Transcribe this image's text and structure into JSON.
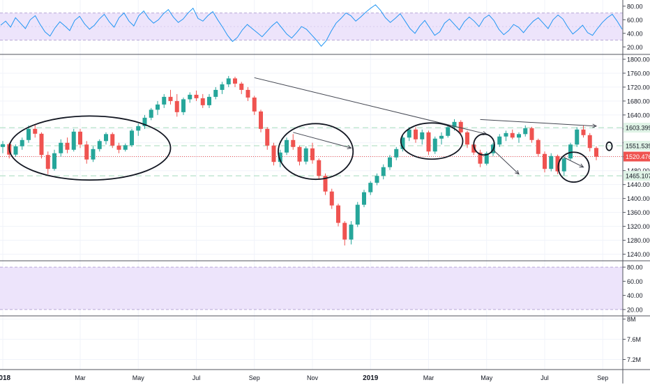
{
  "theme": {
    "up_color": "#26a69a",
    "down_color": "#ef5350",
    "rsi_line_color": "#2196f3",
    "band_fill": "#ede4fb",
    "band_line_color": "#b7a7d6",
    "level_line_color": "#b6e2c8",
    "price_line_color": "#ef5350",
    "drawing_color": "#131722",
    "grid_color": "#f0f3fa",
    "axis_text_color": "#131722",
    "pane_border_color": "#50535e"
  },
  "chart_data": [
    {
      "type": "line",
      "pane": "rsi-top",
      "ylim": [
        10,
        86
      ],
      "yticks": [
        "80.00",
        "60.00",
        "40.00",
        "20.00"
      ],
      "tick_values": [
        80,
        60,
        40,
        20
      ],
      "band": [
        30,
        70
      ],
      "series": [
        {
          "values": [
            52,
            58,
            49,
            63,
            55,
            47,
            60,
            66,
            53,
            42,
            36,
            48,
            57,
            51,
            44,
            59,
            65,
            54,
            46,
            52,
            61,
            68,
            57,
            49,
            63,
            70,
            58,
            51,
            66,
            73,
            62,
            55,
            60,
            69,
            75,
            64,
            56,
            61,
            70,
            77,
            62,
            58,
            66,
            72,
            60,
            49,
            37,
            28,
            34,
            45,
            53,
            47,
            41,
            35,
            43,
            51,
            57,
            48,
            39,
            33,
            41,
            50,
            46,
            38,
            30,
            21,
            29,
            43,
            55,
            62,
            70,
            66,
            58,
            64,
            71,
            77,
            82,
            74,
            63,
            56,
            62,
            69,
            58,
            47,
            40,
            51,
            59,
            48,
            37,
            42,
            55,
            61,
            53,
            45,
            57,
            64,
            58,
            50,
            62,
            67,
            59,
            46,
            38,
            44,
            53,
            49,
            41,
            50,
            58,
            63,
            55,
            47,
            60,
            67,
            61,
            49,
            39,
            45,
            52,
            41,
            37,
            47,
            56,
            63,
            68,
            58,
            46
          ]
        }
      ]
    },
    {
      "type": "candlestick",
      "pane": "price",
      "x_labels": [
        "2018",
        "Mar",
        "May",
        "Jul",
        "Sep",
        "Nov",
        "2019",
        "Mar",
        "May",
        "Jul",
        "Sep"
      ],
      "x_label_positions": [
        0,
        12,
        21,
        30,
        39,
        48,
        57,
        66,
        75,
        84,
        93
      ],
      "ylim": [
        1223,
        1812
      ],
      "yticks": [
        "1800.000",
        "1760.000",
        "1720.000",
        "1680.000",
        "1640.000",
        "1600.000",
        "1560.000",
        "1520.000",
        "1480.000",
        "1440.000",
        "1400.000",
        "1360.000",
        "1320.000",
        "1280.000",
        "1240.000"
      ],
      "tick_values": [
        1800,
        1760,
        1720,
        1680,
        1640,
        1600,
        1560,
        1520,
        1480,
        1440,
        1400,
        1360,
        1320,
        1280,
        1240
      ],
      "levels": [
        1603.399,
        1551.539,
        1465.107
      ],
      "level_labels": [
        "1603.399",
        "1551.539",
        "1465.107"
      ],
      "current_price": 1520.476,
      "current_price_label": "1520.476",
      "candles": [
        [
          1548,
          1565,
          1530,
          1556
        ],
        [
          1556,
          1560,
          1515,
          1526
        ],
        [
          1526,
          1555,
          1520,
          1550
        ],
        [
          1550,
          1575,
          1540,
          1568
        ],
        [
          1568,
          1610,
          1560,
          1600
        ],
        [
          1600,
          1612,
          1575,
          1586
        ],
        [
          1586,
          1590,
          1515,
          1525
        ],
        [
          1525,
          1535,
          1470,
          1485
        ],
        [
          1485,
          1540,
          1480,
          1530
        ],
        [
          1530,
          1570,
          1520,
          1560
        ],
        [
          1560,
          1575,
          1530,
          1540
        ],
        [
          1540,
          1600,
          1535,
          1592
        ],
        [
          1592,
          1600,
          1545,
          1555
        ],
        [
          1555,
          1565,
          1500,
          1512
        ],
        [
          1512,
          1550,
          1505,
          1542
        ],
        [
          1542,
          1570,
          1535,
          1565
        ],
        [
          1565,
          1590,
          1555,
          1585
        ],
        [
          1585,
          1590,
          1545,
          1552
        ],
        [
          1552,
          1560,
          1530,
          1540
        ],
        [
          1540,
          1558,
          1535,
          1553
        ],
        [
          1553,
          1600,
          1548,
          1595
        ],
        [
          1595,
          1615,
          1580,
          1608
        ],
        [
          1608,
          1640,
          1600,
          1632
        ],
        [
          1632,
          1660,
          1625,
          1655
        ],
        [
          1655,
          1680,
          1640,
          1670
        ],
        [
          1670,
          1700,
          1660,
          1692
        ],
        [
          1692,
          1712,
          1670,
          1680
        ],
        [
          1680,
          1700,
          1635,
          1648
        ],
        [
          1648,
          1690,
          1640,
          1685
        ],
        [
          1685,
          1705,
          1675,
          1698
        ],
        [
          1698,
          1710,
          1680,
          1688
        ],
        [
          1688,
          1700,
          1660,
          1668
        ],
        [
          1668,
          1700,
          1660,
          1692
        ],
        [
          1692,
          1720,
          1685,
          1712
        ],
        [
          1712,
          1735,
          1700,
          1728
        ],
        [
          1728,
          1752,
          1720,
          1745
        ],
        [
          1745,
          1750,
          1720,
          1730
        ],
        [
          1730,
          1735,
          1700,
          1712
        ],
        [
          1712,
          1720,
          1680,
          1690
        ],
        [
          1690,
          1695,
          1640,
          1650
        ],
        [
          1650,
          1655,
          1590,
          1600
        ],
        [
          1600,
          1605,
          1540,
          1552
        ],
        [
          1552,
          1560,
          1495,
          1505
        ],
        [
          1505,
          1540,
          1490,
          1532
        ],
        [
          1532,
          1575,
          1525,
          1568
        ],
        [
          1568,
          1585,
          1540,
          1548
        ],
        [
          1548,
          1552,
          1495,
          1506
        ],
        [
          1506,
          1550,
          1498,
          1544
        ],
        [
          1544,
          1560,
          1500,
          1510
        ],
        [
          1510,
          1515,
          1455,
          1465
        ],
        [
          1465,
          1472,
          1410,
          1420
        ],
        [
          1420,
          1428,
          1370,
          1380
        ],
        [
          1380,
          1385,
          1320,
          1330
        ],
        [
          1330,
          1335,
          1265,
          1282
        ],
        [
          1282,
          1335,
          1268,
          1325
        ],
        [
          1325,
          1390,
          1318,
          1382
        ],
        [
          1382,
          1425,
          1375,
          1418
        ],
        [
          1418,
          1450,
          1410,
          1445
        ],
        [
          1445,
          1472,
          1438,
          1465
        ],
        [
          1465,
          1498,
          1455,
          1490
        ],
        [
          1490,
          1525,
          1482,
          1518
        ],
        [
          1518,
          1548,
          1510,
          1542
        ],
        [
          1542,
          1580,
          1535,
          1575
        ],
        [
          1575,
          1605,
          1565,
          1598
        ],
        [
          1598,
          1605,
          1560,
          1570
        ],
        [
          1570,
          1598,
          1555,
          1590
        ],
        [
          1590,
          1595,
          1525,
          1535
        ],
        [
          1535,
          1578,
          1528,
          1572
        ],
        [
          1572,
          1590,
          1555,
          1580
        ],
        [
          1580,
          1612,
          1575,
          1605
        ],
        [
          1605,
          1628,
          1595,
          1620
        ],
        [
          1620,
          1625,
          1580,
          1590
        ],
        [
          1590,
          1595,
          1545,
          1555
        ],
        [
          1555,
          1562,
          1525,
          1532
        ],
        [
          1532,
          1540,
          1490,
          1500
        ],
        [
          1500,
          1535,
          1495,
          1530
        ],
        [
          1530,
          1560,
          1522,
          1555
        ],
        [
          1555,
          1585,
          1548,
          1578
        ],
        [
          1578,
          1595,
          1565,
          1588
        ],
        [
          1588,
          1598,
          1570,
          1575
        ],
        [
          1575,
          1590,
          1560,
          1585
        ],
        [
          1585,
          1610,
          1578,
          1602
        ],
        [
          1602,
          1606,
          1560,
          1568
        ],
        [
          1568,
          1572,
          1520,
          1528
        ],
        [
          1528,
          1535,
          1475,
          1485
        ],
        [
          1485,
          1530,
          1478,
          1522
        ],
        [
          1522,
          1526,
          1470,
          1478
        ],
        [
          1478,
          1520,
          1466,
          1515
        ],
        [
          1515,
          1560,
          1510,
          1555
        ],
        [
          1555,
          1605,
          1548,
          1598
        ],
        [
          1598,
          1610,
          1575,
          1582
        ],
        [
          1582,
          1588,
          1535,
          1545
        ],
        [
          1545,
          1550,
          1510,
          1520
        ]
      ]
    },
    {
      "type": "line",
      "pane": "rsi-bottom",
      "ylim": [
        12,
        88
      ],
      "yticks": [
        "80.00",
        "60.00",
        "40.00",
        "20.00"
      ],
      "tick_values": [
        80,
        60,
        40,
        20
      ],
      "band": [
        20,
        80
      ],
      "series": []
    },
    {
      "type": "area",
      "pane": "volume",
      "yticks": [
        "8M",
        "7.6M",
        "7.2M"
      ],
      "tick_values": [
        8,
        7.6,
        7.2
      ],
      "ylim": [
        7.0,
        8.05
      ],
      "series": []
    }
  ],
  "annotations": {
    "trendlines": [
      {
        "from": [
          39,
          1747
        ],
        "to": [
          75,
          1585
        ]
      },
      {
        "from": [
          45,
          1590
        ],
        "to": [
          54,
          1545
        ]
      },
      {
        "from": [
          74,
          1627
        ],
        "to": [
          92,
          1608
        ]
      },
      {
        "from": [
          76,
          1540
        ],
        "to": [
          80,
          1470
        ]
      },
      {
        "from": [
          87,
          1518
        ],
        "to": [
          90,
          1490
        ]
      }
    ],
    "ellipses": [
      {
        "center": [
          13.5,
          1545
        ],
        "radii": [
          12.5,
          92
        ]
      },
      {
        "center": [
          48.5,
          1535
        ],
        "radii": [
          5.8,
          80
        ]
      },
      {
        "center": [
          66.5,
          1565
        ],
        "radii": [
          4.8,
          52
        ]
      },
      {
        "center": [
          74.6,
          1555
        ],
        "radii": [
          1.6,
          30
        ]
      },
      {
        "center": [
          88.5,
          1490
        ],
        "radii": [
          2.4,
          43
        ]
      },
      {
        "center": [
          94,
          1550
        ],
        "radii": [
          0.45,
          12
        ]
      }
    ]
  }
}
